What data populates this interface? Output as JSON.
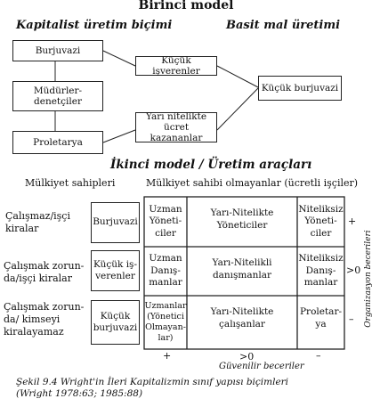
{
  "model1": {
    "title": "Birinci model",
    "left_heading": "Kapitalist üretim biçimi",
    "right_heading": "Basit mal üretimi",
    "burjuvazi": "Burjuvazi",
    "mudurler_1": "Müdürler-",
    "mudurler_2": "denetçiler",
    "proletarya": "Proletarya",
    "kucuk_isverenler": "Küçük işverenler",
    "yari_1": "Yarı nitelikte",
    "yari_2": "ücret kazananlar",
    "kucuk_burjuvazi": "Küçük burjuvazi"
  },
  "model2": {
    "title": "İkinci model / Üretim araçları",
    "owners_header": "Mülkiyet sahipleri",
    "nonowners_header": "Mülkiyet sahibi olmayanlar (ücretli işçiler)",
    "rows": [
      {
        "label_1": "Çalışmaz/işçi",
        "label_2": "kiralar"
      },
      {
        "label_1": "Çalışmak zorun-",
        "label_2": "da/işçi kiralar"
      },
      {
        "label_1": "Çalışmak zorun-",
        "label_2": "da/ kimseyi",
        "label_3": "kiralayamaz"
      }
    ],
    "owners": [
      {
        "l1": "Burjuvazi"
      },
      {
        "l1": "Küçük iş-",
        "l2": "verenler"
      },
      {
        "l1": "Küçük",
        "l2": "burjuvazi"
      }
    ],
    "grid": [
      [
        {
          "l1": "Uzman",
          "l2": "Yöneti-",
          "l3": "ciler"
        },
        {
          "l1": "Yarı-Nitelikte",
          "l2": "Yöneticiler"
        },
        {
          "l1": "Niteliksiz",
          "l2": "Yöneti-",
          "l3": "ciler"
        }
      ],
      [
        {
          "l1": "Uzman",
          "l2": "Danış-",
          "l3": "manlar"
        },
        {
          "l1": "Yarı-Nitelikli",
          "l2": "danışmanlar"
        },
        {
          "l1": "Niteliksiz",
          "l2": "Danış-",
          "l3": "manlar"
        }
      ],
      [
        {
          "l1": "Uzmanlar",
          "l2": "(Yönetici",
          "l3": "Olmayan-",
          "l4": "lar)"
        },
        {
          "l1": "Yarı-Nitelikte",
          "l2": "çalışanlar"
        },
        {
          "l1": "Proletar-",
          "l2": "ya"
        }
      ]
    ],
    "right_marks": [
      "+",
      ">0",
      "–"
    ],
    "right_axis": "Organizasyon becerileri",
    "bottom_marks": [
      "+",
      ">0",
      "–"
    ],
    "bottom_axis": "Güvenilir beceriler"
  },
  "caption": {
    "line1": "Şekil 9.4 Wright'in İleri Kapitalizmin sınıf yapısı biçimleri",
    "line2": "(Wright 1978:63; 1985:88)"
  }
}
